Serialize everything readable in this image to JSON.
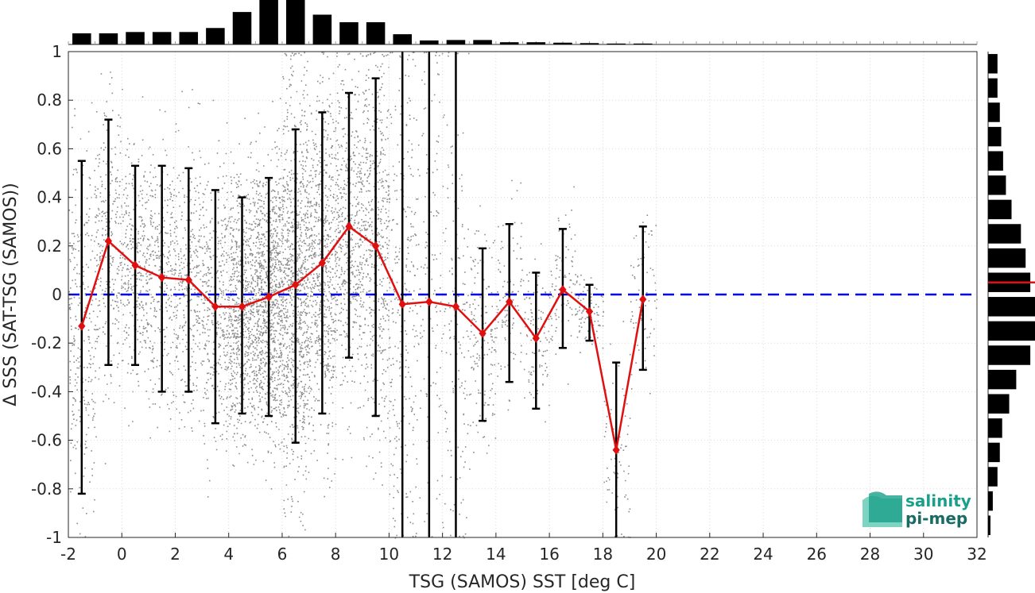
{
  "chart_data": {
    "type": "scatter",
    "xlabel": "TSG (SAMOS) SST [deg C]",
    "ylabel": "Δ SSS (SAT-TSG (SAMOS))",
    "xlim": [
      -2,
      32
    ],
    "ylim": [
      -1,
      1
    ],
    "x_ticks": [
      "-2",
      "0",
      "2",
      "4",
      "6",
      "8",
      "10",
      "12",
      "14",
      "16",
      "18",
      "20",
      "22",
      "24",
      "26",
      "28",
      "30",
      "32"
    ],
    "y_ticks": [
      "-1",
      "-0.8",
      "-0.6",
      "-0.4",
      "-0.2",
      "0",
      "0.2",
      "0.4",
      "0.6",
      "0.8",
      "1"
    ],
    "grid": true,
    "reference_line": {
      "y": 0,
      "color": "#0000dd",
      "style": "dashed"
    },
    "binned_mean": {
      "color": "#e01010",
      "x": [
        -1.5,
        -0.5,
        0.5,
        1.5,
        2.5,
        3.5,
        4.5,
        5.5,
        6.5,
        7.5,
        8.5,
        9.5,
        10.5,
        11.5,
        12.5,
        13.5,
        14.5,
        15.5,
        16.5,
        17.5,
        18.5,
        19.5
      ],
      "y": [
        -0.13,
        0.22,
        0.12,
        0.07,
        0.06,
        -0.05,
        -0.05,
        -0.01,
        0.04,
        0.13,
        0.28,
        0.2,
        -0.04,
        -0.03,
        -0.05,
        -0.16,
        -0.03,
        -0.18,
        0.02,
        -0.07,
        -0.64,
        -0.02
      ],
      "err_low": [
        -0.82,
        -0.29,
        -0.29,
        -0.4,
        -0.4,
        -0.53,
        -0.49,
        -0.5,
        -0.61,
        -0.49,
        -0.26,
        -0.5,
        -1,
        -1,
        -1,
        -0.52,
        -0.36,
        -0.47,
        -0.22,
        -0.19,
        -1,
        -0.31
      ],
      "err_high": [
        0.55,
        0.72,
        0.53,
        0.53,
        0.52,
        0.43,
        0.4,
        0.48,
        0.68,
        0.75,
        0.83,
        0.89,
        1,
        1,
        1,
        0.19,
        0.29,
        0.09,
        0.27,
        0.04,
        -0.28,
        0.28
      ]
    },
    "scatter_color": "#8c8c8c",
    "top_histogram": {
      "color": "#000000",
      "x_centers": [
        -1.5,
        -0.5,
        0.5,
        1.5,
        2.5,
        3.5,
        4.5,
        5.5,
        6.5,
        7.5,
        8.5,
        9.5,
        10.5,
        11.5,
        12.5,
        13.5,
        14.5,
        15.5,
        16.5,
        17.5,
        18.5,
        19.5
      ],
      "relative_counts": [
        0.25,
        0.25,
        0.28,
        0.28,
        0.28,
        0.37,
        0.73,
        1.0,
        1.0,
        0.67,
        0.5,
        0.5,
        0.23,
        0.09,
        0.1,
        0.1,
        0.05,
        0.05,
        0.04,
        0.03,
        0.02,
        0.02
      ]
    },
    "right_histogram": {
      "color": "#000000",
      "y_centers": [
        0.95,
        0.85,
        0.75,
        0.65,
        0.55,
        0.45,
        0.35,
        0.25,
        0.15,
        0.05,
        -0.05,
        -0.15,
        -0.25,
        -0.35,
        -0.45,
        -0.55,
        -0.65,
        -0.75,
        -0.85,
        -0.95
      ],
      "relative_counts": [
        0.2,
        0.2,
        0.25,
        0.28,
        0.32,
        0.38,
        0.5,
        0.7,
        0.8,
        0.9,
        1.0,
        1.0,
        0.9,
        0.6,
        0.45,
        0.3,
        0.25,
        0.2,
        0.1,
        0.05
      ],
      "mean_line": {
        "y": 0.05,
        "color": "#e01010"
      }
    }
  },
  "logo": {
    "line1": "salinity",
    "line2": "pi-mep",
    "color": "#1aa08a"
  }
}
